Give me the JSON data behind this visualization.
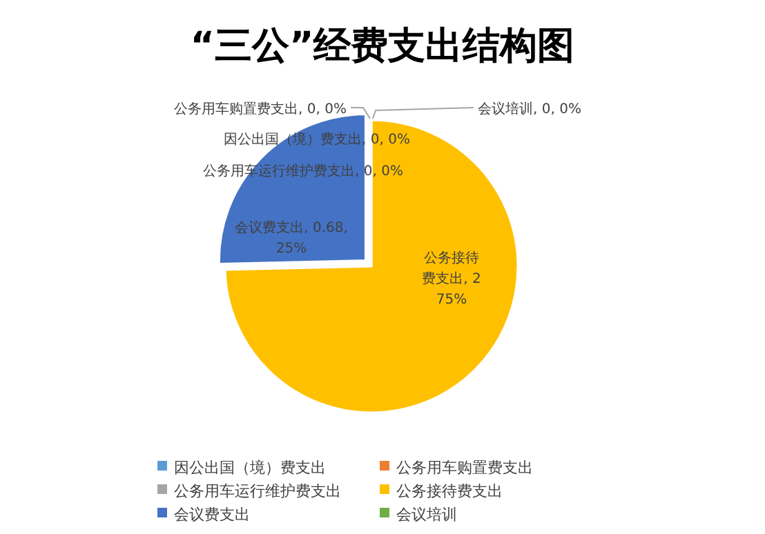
{
  "chart_data": {
    "type": "pie",
    "title": "“三公”经费支出结构图",
    "categories": [
      "因公出国（境）费支出",
      "公务用车购置费支出",
      "公务用车运行维护费支出",
      "公务接待费支出",
      "会议费支出",
      "会议培训"
    ],
    "values": [
      0,
      0,
      0,
      2,
      0.68,
      0
    ],
    "colors": [
      "#5b9bd5",
      "#ed7d31",
      "#a5a5a5",
      "#ffc000",
      "#4472c4",
      "#70ad47"
    ],
    "value_labels": [
      "因公出国（境）费支出, 0, 0%",
      "公务用车购置费支出, 0, 0%",
      "公务用车运行维护费支出, 0, 0%",
      "公务接待费支出, 2 75%",
      "会议费支出, 0.68, 25%",
      "会议培训, 0, 0%"
    ],
    "legend": "bottom"
  }
}
